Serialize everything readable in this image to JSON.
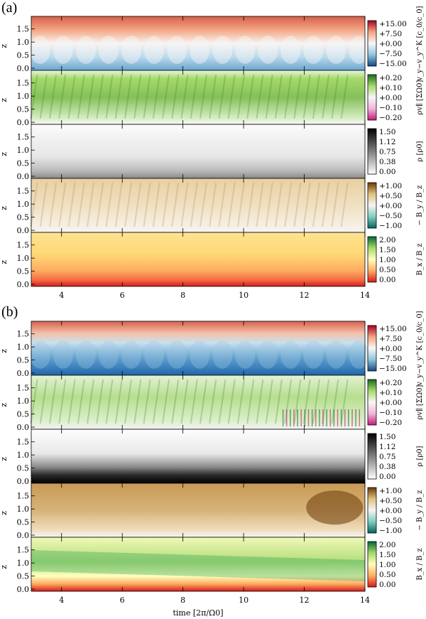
{
  "figure": {
    "groups": [
      {
        "label": "(a)",
        "rows": [
          {
            "quantity": "vy-minus-keplerian",
            "ylabel": "z",
            "yticks": [
              "0.0",
              "0.5",
              "1.0",
              "1.5"
            ],
            "cbar_label": "v_y−v_y^K  [c_0/c_0]",
            "cbar_ticks": [
              "+15.00",
              "+7.50",
              "+0.00",
              "−7.50",
              "−15.00"
            ],
            "colormap": "red-blue-diverging",
            "cbar_top": "#a50026",
            "cbar_mid": "#f7f7f7",
            "cbar_bottom": "#134b87"
          },
          {
            "quantity": "rho-v-parallel",
            "ylabel": "z",
            "yticks": [
              "0.0",
              "0.5",
              "1.0",
              "1.5"
            ],
            "cbar_label": "ρv∥ [ΣΩ0]",
            "cbar_ticks": [
              "+0.20",
              "+0.10",
              "+0.00",
              "−0.10",
              "−0.20"
            ],
            "colormap": "green-pink-diverging",
            "cbar_top": "#1b6a1b",
            "cbar_mid": "#f7f7f7",
            "cbar_bottom": "#c51b7d"
          },
          {
            "quantity": "density",
            "ylabel": "z",
            "yticks": [
              "0.0",
              "0.5",
              "1.0",
              "1.5"
            ],
            "cbar_label": "ρ [ρ0]",
            "cbar_ticks": [
              "1.50",
              "1.12",
              "0.75",
              "0.38",
              "0.00"
            ],
            "colormap": "grayscale",
            "cbar_top": "#000000",
            "cbar_bottom": "#ffffff"
          },
          {
            "quantity": "minus-By-over-Bz",
            "ylabel": "z",
            "yticks": [
              "0.0",
              "0.5",
              "1.0",
              "1.5"
            ],
            "cbar_label": "− B_y / B_z",
            "cbar_ticks": [
              "+1.00",
              "+0.50",
              "+0.00",
              "−0.50",
              "−1.00"
            ],
            "colormap": "brown-teal-diverging",
            "cbar_top": "#6b3a07",
            "cbar_mid": "#f5f5f5",
            "cbar_bottom": "#01665e"
          },
          {
            "quantity": "Bx-over-Bz",
            "ylabel": "z",
            "yticks": [
              "0.0",
              "0.5",
              "1.0",
              "1.5"
            ],
            "cbar_label": "B_x / B_z",
            "cbar_ticks": [
              "2.00",
              "1.50",
              "1.00",
              "0.50",
              "0.00"
            ],
            "colormap": "red-yellow-green",
            "cbar_top": "#006837",
            "cbar_mid": "#ffffbf",
            "cbar_bottom": "#d7191c"
          }
        ]
      },
      {
        "label": "(b)",
        "rows": [
          {
            "quantity": "vy-minus-keplerian",
            "ylabel": "z",
            "yticks": [
              "0.0",
              "0.5",
              "1.0",
              "1.5"
            ],
            "cbar_label": "v_y−v_y^K  [c_0/c_0]",
            "cbar_ticks": [
              "+15.00",
              "+7.50",
              "+0.00",
              "−7.50",
              "−15.00"
            ],
            "colormap": "red-blue-diverging",
            "cbar_top": "#a50026",
            "cbar_mid": "#f7f7f7",
            "cbar_bottom": "#134b87"
          },
          {
            "quantity": "rho-v-parallel",
            "ylabel": "z",
            "yticks": [
              "0.0",
              "0.5",
              "1.0",
              "1.5"
            ],
            "cbar_label": "ρv∥ [ΣΩ0]",
            "cbar_ticks": [
              "+0.20",
              "+0.10",
              "+0.00",
              "−0.10",
              "−0.20"
            ],
            "colormap": "green-pink-diverging",
            "cbar_top": "#1b6a1b",
            "cbar_mid": "#f7f7f7",
            "cbar_bottom": "#c51b7d"
          },
          {
            "quantity": "density",
            "ylabel": "z",
            "yticks": [
              "0.0",
              "0.5",
              "1.0",
              "1.5"
            ],
            "cbar_label": "ρ [ρ0]",
            "cbar_ticks": [
              "1.50",
              "1.12",
              "0.75",
              "0.38",
              "0.00"
            ],
            "colormap": "grayscale",
            "cbar_top": "#000000",
            "cbar_bottom": "#ffffff"
          },
          {
            "quantity": "minus-By-over-Bz",
            "ylabel": "z",
            "yticks": [
              "0.0",
              "0.5",
              "1.0",
              "1.5"
            ],
            "cbar_label": "− B_y / B_z",
            "cbar_ticks": [
              "+1.00",
              "+0.50",
              "+0.00",
              "−0.50",
              "−1.00"
            ],
            "colormap": "brown-teal-diverging",
            "cbar_top": "#6b3a07",
            "cbar_mid": "#f5f5f5",
            "cbar_bottom": "#01665e"
          },
          {
            "quantity": "Bx-over-Bz",
            "ylabel": "z",
            "yticks": [
              "0.0",
              "0.5",
              "1.0",
              "1.5"
            ],
            "cbar_label": "B_x / B_z",
            "cbar_ticks": [
              "2.00",
              "1.50",
              "1.00",
              "0.50",
              "0.00"
            ],
            "colormap": "red-yellow-green",
            "cbar_top": "#006837",
            "cbar_mid": "#ffffbf",
            "cbar_bottom": "#d7191c"
          }
        ]
      }
    ],
    "xticks": [
      "4",
      "6",
      "8",
      "10",
      "12",
      "14"
    ],
    "xlabel": "time  [2π/Ω0]"
  },
  "chart_data": {
    "type": "heatmap",
    "x": {
      "label": "time [2π/Ω0]",
      "range": [
        3,
        14
      ],
      "ticks": [
        4,
        6,
        8,
        10,
        12,
        14
      ]
    },
    "y": {
      "label": "z",
      "range": [
        0,
        1.9
      ],
      "ticks": [
        0.0,
        0.5,
        1.0,
        1.5
      ]
    },
    "panels": [
      {
        "group": "(a)",
        "field": "v_y − v_y^K",
        "units": "c_0/c_0",
        "clim": [
          -15,
          15
        ]
      },
      {
        "group": "(a)",
        "field": "ρ v∥",
        "units": "ΣΩ0",
        "clim": [
          -0.2,
          0.2
        ]
      },
      {
        "group": "(a)",
        "field": "ρ",
        "units": "ρ0",
        "clim": [
          0,
          1.5
        ]
      },
      {
        "group": "(a)",
        "field": "−B_y/B_z",
        "units": "",
        "clim": [
          -1,
          1
        ]
      },
      {
        "group": "(a)",
        "field": "B_x/B_z",
        "units": "",
        "clim": [
          0,
          2
        ]
      },
      {
        "group": "(b)",
        "field": "v_y − v_y^K",
        "units": "c_0/c_0",
        "clim": [
          -15,
          15
        ]
      },
      {
        "group": "(b)",
        "field": "ρ v∥",
        "units": "ΣΩ0",
        "clim": [
          -0.2,
          0.2
        ]
      },
      {
        "group": "(b)",
        "field": "ρ",
        "units": "ρ0",
        "clim": [
          0,
          1.5
        ]
      },
      {
        "group": "(b)",
        "field": "−B_y/B_z",
        "units": "",
        "clim": [
          -1,
          1
        ]
      },
      {
        "group": "(b)",
        "field": "B_x/B_z",
        "units": "",
        "clim": [
          0,
          2
        ]
      }
    ]
  }
}
